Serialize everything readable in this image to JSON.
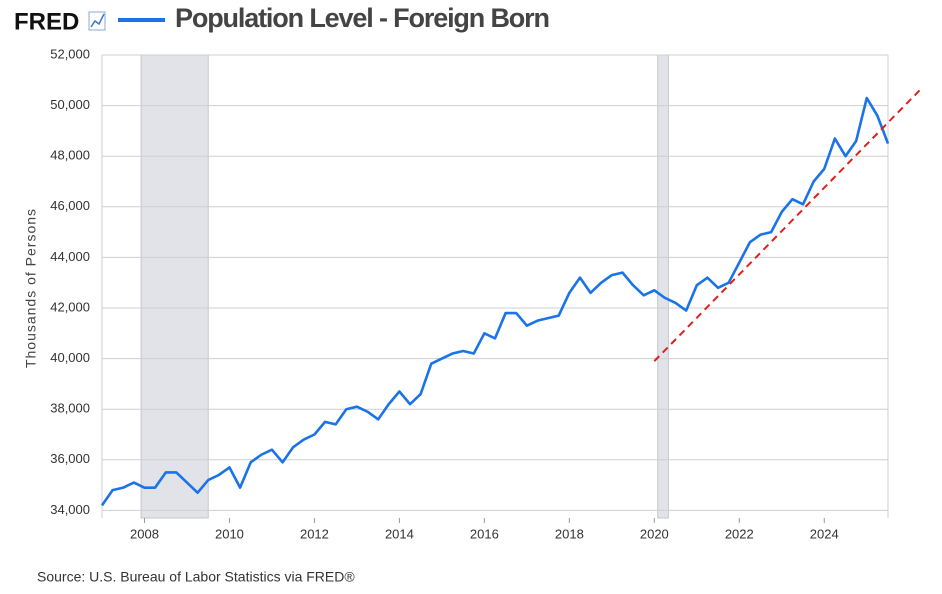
{
  "chart_data": {
    "type": "line",
    "logo": "FRED",
    "title": "Population Level - Foreign Born",
    "ylabel": "Thousands of Persons",
    "source": "Source: U.S. Bureau of Labor Statistics via FRED®",
    "xlim": [
      2007,
      2025.5
    ],
    "ylim": [
      33700,
      52000
    ],
    "xticks": [
      2008,
      2010,
      2012,
      2014,
      2016,
      2018,
      2020,
      2022,
      2024
    ],
    "yticks": [
      {
        "value": 34000,
        "label": "34,000"
      },
      {
        "value": 36000,
        "label": "36,000"
      },
      {
        "value": 38000,
        "label": "38,000"
      },
      {
        "value": 40000,
        "label": "40,000"
      },
      {
        "value": 42000,
        "label": "42,000"
      },
      {
        "value": 44000,
        "label": "44,000"
      },
      {
        "value": 46000,
        "label": "46,000"
      },
      {
        "value": 48000,
        "label": "48,000"
      },
      {
        "value": 50000,
        "label": "50,000"
      },
      {
        "value": 52000,
        "label": "52,000"
      }
    ],
    "grid": true,
    "recessions": [
      [
        2007.92,
        2009.5
      ],
      [
        2020.08,
        2020.33
      ]
    ],
    "recession_color": "#e1e3e8",
    "x": [
      2007,
      2007.25,
      2007.5,
      2007.75,
      2008,
      2008.25,
      2008.5,
      2008.75,
      2009,
      2009.25,
      2009.5,
      2009.75,
      2010,
      2010.25,
      2010.5,
      2010.75,
      2011,
      2011.25,
      2011.5,
      2011.75,
      2012,
      2012.25,
      2012.5,
      2012.75,
      2013,
      2013.25,
      2013.5,
      2013.75,
      2014,
      2014.25,
      2014.5,
      2014.75,
      2015,
      2015.25,
      2015.5,
      2015.75,
      2016,
      2016.25,
      2016.5,
      2016.75,
      2017,
      2017.25,
      2017.5,
      2017.75,
      2018,
      2018.25,
      2018.5,
      2018.75,
      2019,
      2019.25,
      2019.5,
      2019.75,
      2020,
      2020.25,
      2020.5,
      2020.75,
      2021,
      2021.25,
      2021.5,
      2021.75,
      2022,
      2022.25,
      2022.5,
      2022.75,
      2023,
      2023.25,
      2023.5,
      2023.75,
      2024,
      2024.25,
      2024.5,
      2024.75,
      2025,
      2025.25,
      2025.5
    ],
    "series": [
      {
        "name": "Population Level - Foreign Born",
        "color": "#1a73e8",
        "values": [
          34200,
          34800,
          34900,
          35100,
          34900,
          34900,
          35500,
          35500,
          35100,
          34700,
          35200,
          35400,
          35700,
          34900,
          35900,
          36200,
          36400,
          35900,
          36500,
          36800,
          37000,
          37500,
          37400,
          38000,
          38100,
          37900,
          37600,
          38200,
          38700,
          38200,
          38600,
          39800,
          40000,
          40200,
          40300,
          40200,
          41000,
          40800,
          41800,
          41800,
          41300,
          41500,
          41600,
          41700,
          42600,
          43200,
          42600,
          43000,
          43300,
          43400,
          42900,
          42500,
          42700,
          42400,
          42200,
          41900,
          42900,
          43200,
          42800,
          43000,
          43800,
          44600,
          44900,
          45000,
          45800,
          46300,
          46100,
          47000,
          47500,
          48700,
          48000,
          48600,
          50300,
          49600,
          48500
        ]
      }
    ],
    "trend_line": {
      "color": "#e0201b",
      "x": [
        2020,
        2026.3
      ],
      "values": [
        39900,
        50700
      ]
    }
  }
}
